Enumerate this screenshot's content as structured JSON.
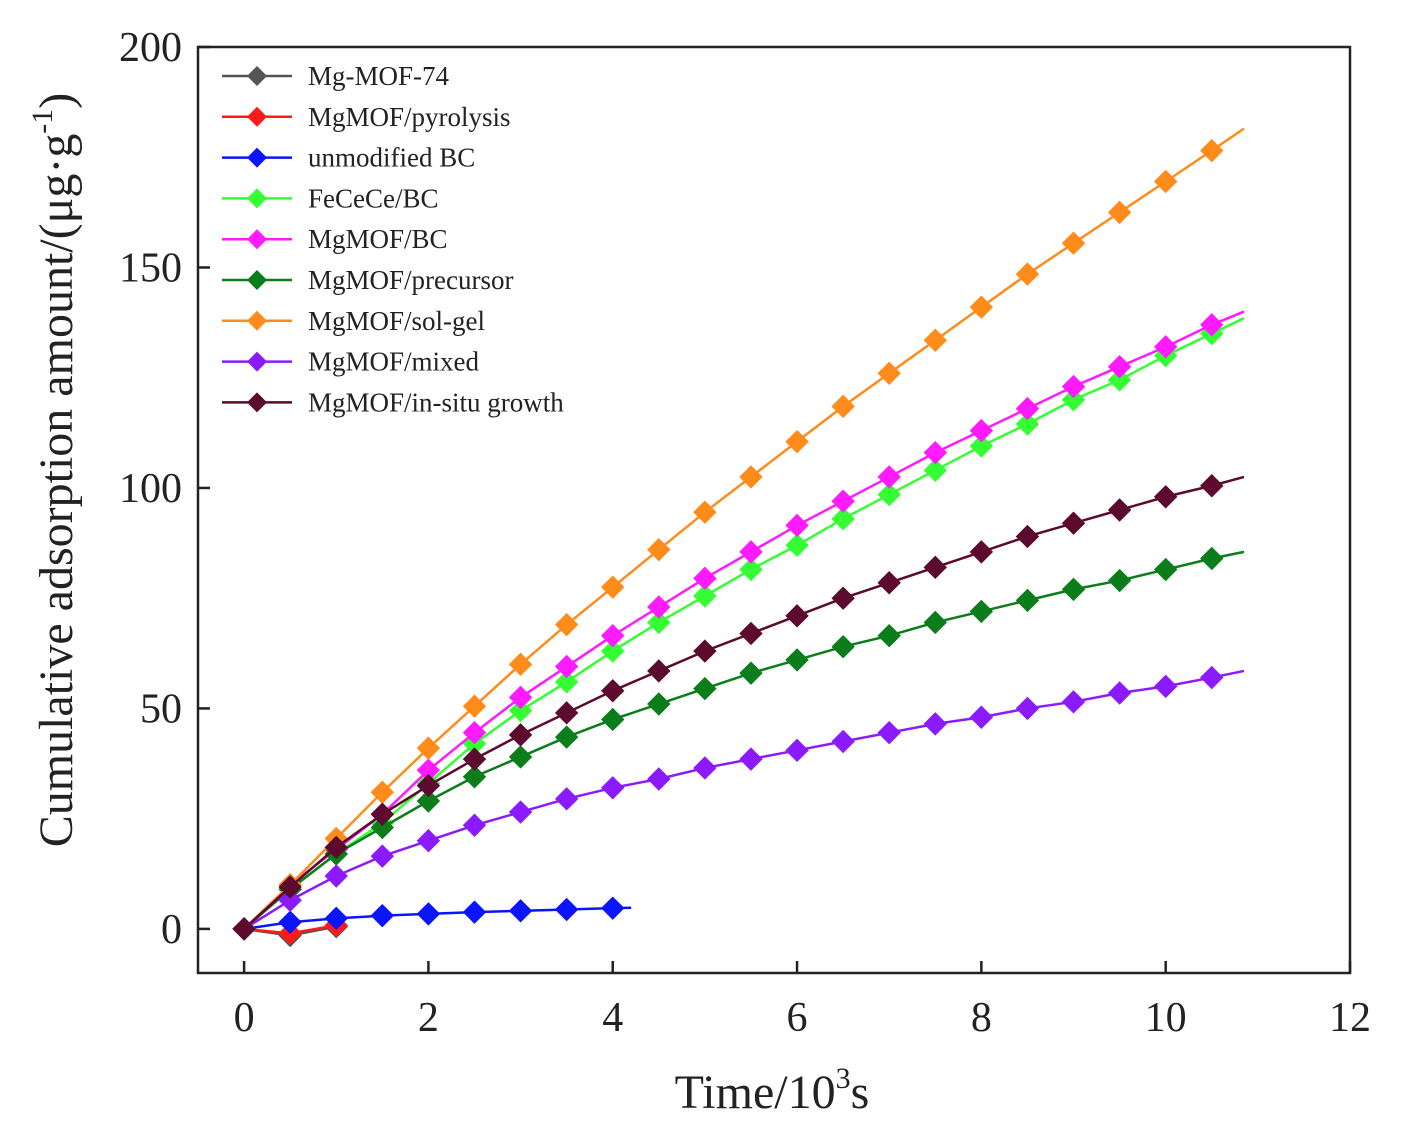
{
  "chart_data": {
    "type": "line",
    "title": "",
    "xlabel": {
      "base": "Time/10",
      "sup": "3",
      "tail": "s"
    },
    "ylabel": {
      "base": "Cumulative adsorption amount/(μg·g",
      "sup": "-1",
      "tail": ")"
    },
    "xlim": [
      -0.5,
      12
    ],
    "ylim": [
      -10,
      200
    ],
    "xticks": [
      0,
      2,
      4,
      6,
      8,
      10,
      12
    ],
    "yticks": [
      0,
      50,
      100,
      150,
      200
    ],
    "grid": false,
    "legend_position": "top-left",
    "series": [
      {
        "name": "Mg-MOF-74",
        "color": "#555555",
        "x": [
          0,
          0.5,
          1.0
        ],
        "y": [
          0,
          -1.5,
          0.5
        ]
      },
      {
        "name": "MgMOF/pyrolysis",
        "color": "#ff1a1a",
        "x": [
          0,
          0.5,
          1.0
        ],
        "y": [
          0,
          -1.0,
          0.8
        ]
      },
      {
        "name": "unmodified BC",
        "color": "#0a14ff",
        "x": [
          0,
          0.5,
          1.0,
          1.5,
          2.0,
          2.5,
          3.0,
          3.5,
          4.0
        ],
        "y": [
          0,
          1.5,
          2.4,
          3.0,
          3.4,
          3.8,
          4.1,
          4.4,
          4.7
        ],
        "line_end": [
          4.2,
          4.8
        ]
      },
      {
        "name": "FeCeCe/BC",
        "color": "#33ff33",
        "x": [
          0,
          0.5,
          1.0,
          1.5,
          2.0,
          2.5,
          3.0,
          3.5,
          4.0,
          4.5,
          5.0,
          5.5,
          6.0,
          6.5,
          7.0,
          7.5,
          8.0,
          8.5,
          9.0,
          9.5,
          10.0,
          10.5
        ],
        "y": [
          0,
          9,
          17,
          24,
          33,
          42,
          49.5,
          56,
          63,
          69.5,
          75.5,
          81.5,
          87,
          93,
          98.5,
          104,
          109.5,
          114.5,
          120,
          124.5,
          130,
          135
        ],
        "line_end": [
          10.85,
          138.5
        ]
      },
      {
        "name": "MgMOF/BC",
        "color": "#ff1aff",
        "x": [
          0,
          0.5,
          1.0,
          1.5,
          2.0,
          2.5,
          3.0,
          3.5,
          4.0,
          4.5,
          5.0,
          5.5,
          6.0,
          6.5,
          7.0,
          7.5,
          8.0,
          8.5,
          9.0,
          9.5,
          10.0,
          10.5
        ],
        "y": [
          0,
          10,
          18,
          26,
          36,
          44.5,
          52.5,
          59.5,
          66.5,
          73,
          79.5,
          85.5,
          91.5,
          97,
          102.5,
          108,
          113,
          118,
          123,
          127.5,
          132,
          137
        ],
        "line_end": [
          10.85,
          140
        ]
      },
      {
        "name": "MgMOF/precursor",
        "color": "#0b7d1a",
        "x": [
          0,
          0.5,
          1.0,
          1.5,
          2.0,
          2.5,
          3.0,
          3.5,
          4.0,
          4.5,
          5.0,
          5.5,
          6.0,
          6.5,
          7.0,
          7.5,
          8.0,
          8.5,
          9.0,
          9.5,
          10.0,
          10.5
        ],
        "y": [
          0,
          9,
          17,
          23,
          29,
          34.5,
          39,
          43.5,
          47.5,
          51,
          54.5,
          58,
          61,
          64,
          66.5,
          69.5,
          72,
          74.5,
          77,
          79,
          81.5,
          84
        ],
        "line_end": [
          10.85,
          85.5
        ]
      },
      {
        "name": "MgMOF/sol-gel",
        "color": "#ff8c1a",
        "x": [
          0,
          0.5,
          1.0,
          1.5,
          2.0,
          2.5,
          3.0,
          3.5,
          4.0,
          4.5,
          5.0,
          5.5,
          6.0,
          6.5,
          7.0,
          7.5,
          8.0,
          8.5,
          9.0,
          9.5,
          10.0,
          10.5
        ],
        "y": [
          0,
          10,
          20.5,
          31,
          41,
          50.5,
          60,
          69,
          77.5,
          86,
          94.5,
          102.5,
          110.5,
          118.5,
          126,
          133.5,
          141,
          148.5,
          155.5,
          162.5,
          169.5,
          176.5
        ],
        "line_end": [
          10.85,
          181.5
        ]
      },
      {
        "name": "MgMOF/mixed",
        "color": "#8c1aff",
        "x": [
          0,
          0.5,
          1.0,
          1.5,
          2.0,
          2.5,
          3.0,
          3.5,
          4.0,
          4.5,
          5.0,
          5.5,
          6.0,
          6.5,
          7.0,
          7.5,
          8.0,
          8.5,
          9.0,
          9.5,
          10.0,
          10.5
        ],
        "y": [
          0,
          6.5,
          12,
          16.5,
          20,
          23.5,
          26.5,
          29.5,
          32,
          34,
          36.5,
          38.5,
          40.5,
          42.5,
          44.5,
          46.5,
          48,
          50,
          51.5,
          53.5,
          55,
          57
        ],
        "line_end": [
          10.85,
          58.5
        ]
      },
      {
        "name": "MgMOF/in-situ growth",
        "color": "#5c0a2e",
        "x": [
          0,
          0.5,
          1.0,
          1.5,
          2.0,
          2.5,
          3.0,
          3.5,
          4.0,
          4.5,
          5.0,
          5.5,
          6.0,
          6.5,
          7.0,
          7.5,
          8.0,
          8.5,
          9.0,
          9.5,
          10.0,
          10.5
        ],
        "y": [
          0,
          9.5,
          18.5,
          26,
          32.5,
          38.5,
          44,
          49,
          54,
          58.5,
          63,
          67,
          71,
          75,
          78.5,
          82,
          85.5,
          89,
          92,
          95,
          98,
          100.5
        ],
        "line_end": [
          10.85,
          102.5
        ]
      }
    ]
  }
}
